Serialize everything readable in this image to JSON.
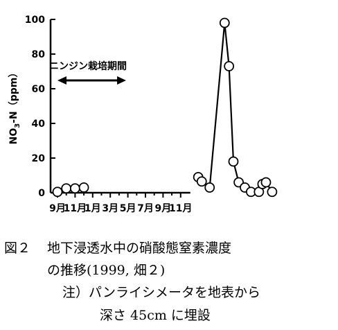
{
  "chart_data": {
    "type": "line",
    "title": "",
    "xlabel": "",
    "ylabel": "NO3-N（ppm）",
    "y_ticks": [
      "0",
      "20",
      "40",
      "60",
      "80",
      "100"
    ],
    "x_ticks": [
      "9月",
      "11月",
      "1月",
      "3月",
      "5月",
      "7月",
      "9月",
      "11月"
    ],
    "ylim": [
      0,
      100
    ],
    "grid": false,
    "annotation": {
      "text": "ニンジン栽培期間",
      "from_month": 0.0,
      "to_month": 7.8
    },
    "series": [
      {
        "segments": [
          [
            [
              0.0,
              0.5
            ],
            [
              1.0,
              2.5
            ],
            [
              2.0,
              2.5
            ],
            [
              3.0,
              3.0
            ]
          ],
          [
            [
              16.0,
              9.0
            ],
            [
              16.4,
              6.5
            ],
            [
              17.3,
              3.0
            ],
            [
              19.0,
              98.0
            ],
            [
              19.5,
              73.0
            ],
            [
              20.0,
              18.0
            ],
            [
              20.6,
              6.0
            ],
            [
              21.3,
              3.0
            ],
            [
              22.0,
              0.5
            ],
            [
              22.9,
              0.5
            ],
            [
              23.3,
              5.0
            ],
            [
              23.7,
              6.0
            ],
            [
              24.4,
              0.5
            ]
          ]
        ]
      }
    ]
  },
  "caption": {
    "line1_label": "図２",
    "line1_text": "地下浸透水中の硝酸態窒素濃度",
    "line2_text": "の推移(1999, 畑２)",
    "line3_text": "注）パンライシメータを地表から",
    "line4_text": "深さ 45cm に埋設"
  }
}
